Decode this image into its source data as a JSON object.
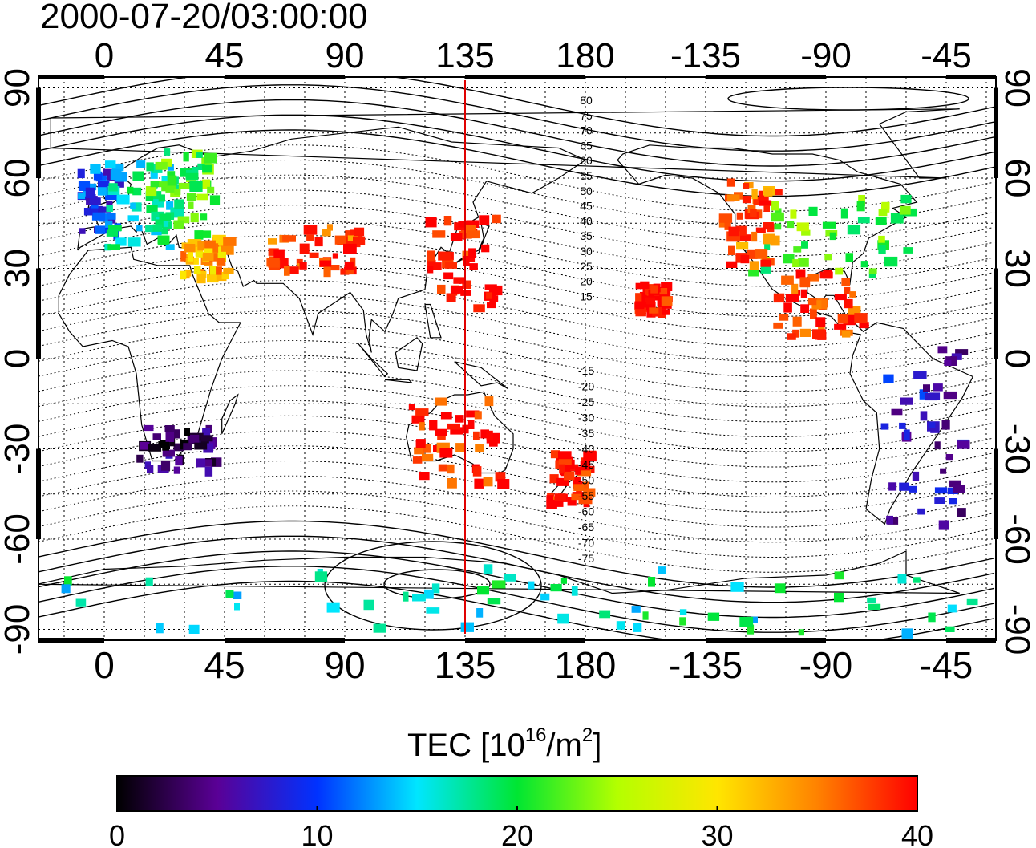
{
  "title": "2000-07-20/03:00:00",
  "map": {
    "top_lon_labels": [
      "0",
      "45",
      "90",
      "135",
      "180",
      "-135",
      "-90",
      "-45"
    ],
    "bottom_lon_labels": [
      "0",
      "45",
      "90",
      "135",
      "180",
      "-135",
      "-90",
      "-45"
    ],
    "left_lat_labels": [
      "90",
      "60",
      "30",
      "0",
      "-30",
      "-60",
      "-90"
    ],
    "right_lat_labels": [
      "90",
      "60",
      "30",
      "0",
      "-30",
      "-60",
      "-90"
    ],
    "contour_labels_north": [
      "80",
      "75",
      "70",
      "65",
      "60",
      "55",
      "50",
      "45",
      "40",
      "35",
      "30",
      "25",
      "20",
      "15"
    ],
    "contour_labels_south": [
      "-15",
      "-20",
      "-25",
      "-30",
      "-35",
      "-40",
      "-45",
      "-50",
      "-55",
      "-60",
      "-65",
      "-70",
      "-75"
    ],
    "marker_longitude": 135,
    "marker_color": "#e00000"
  },
  "colorbar": {
    "label_main": "TEC  [10",
    "label_sup1": "16",
    "label_mid": "/m",
    "label_sup2": "2",
    "label_end": "]",
    "ticks": [
      "0",
      "10",
      "20",
      "30",
      "40"
    ],
    "min": 0,
    "max": 40,
    "colors": [
      "#000000",
      "#5a0096",
      "#0032ff",
      "#00e6ff",
      "#00e632",
      "#b4ff00",
      "#ffe600",
      "#ff8200",
      "#ff0000"
    ]
  },
  "tec_regions": [
    {
      "name": "western-europe",
      "value": 10
    },
    {
      "name": "central-europe",
      "value": 17
    },
    {
      "name": "eastern-europe",
      "value": 22
    },
    {
      "name": "middle-east",
      "value": 33
    },
    {
      "name": "central-asia",
      "value": 37
    },
    {
      "name": "east-asia-japan",
      "value": 40
    },
    {
      "name": "north-america-east",
      "value": 22
    },
    {
      "name": "north-america-west",
      "value": 36
    },
    {
      "name": "central-america",
      "value": 38
    },
    {
      "name": "south-america",
      "value": 7
    },
    {
      "name": "southern-africa",
      "value": 3
    },
    {
      "name": "australia",
      "value": 39
    },
    {
      "name": "new-zealand",
      "value": 40
    },
    {
      "name": "hawaii",
      "value": 40
    },
    {
      "name": "antarctica",
      "value": 17
    }
  ]
}
